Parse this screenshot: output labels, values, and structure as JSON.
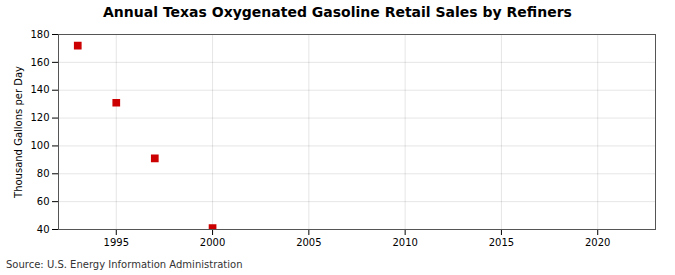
{
  "chart_data": {
    "type": "scatter",
    "title": "Annual Texas Oxygenated Gasoline Retail Sales by Refiners",
    "source": "Source: U.S. Energy Information Administration",
    "ylabel": "Thousand Gallons per Day",
    "x": [
      1993,
      1995,
      1997,
      2000
    ],
    "values": [
      172,
      131,
      91,
      41
    ],
    "color": "#cc0000",
    "marker": "square",
    "xlim": [
      1992,
      2023
    ],
    "xticks": [
      1995,
      2000,
      2005,
      2010,
      2015,
      2020
    ],
    "ylim": [
      40,
      180
    ],
    "yticks": [
      40,
      60,
      80,
      100,
      120,
      140,
      160,
      180
    ],
    "grid": true
  }
}
